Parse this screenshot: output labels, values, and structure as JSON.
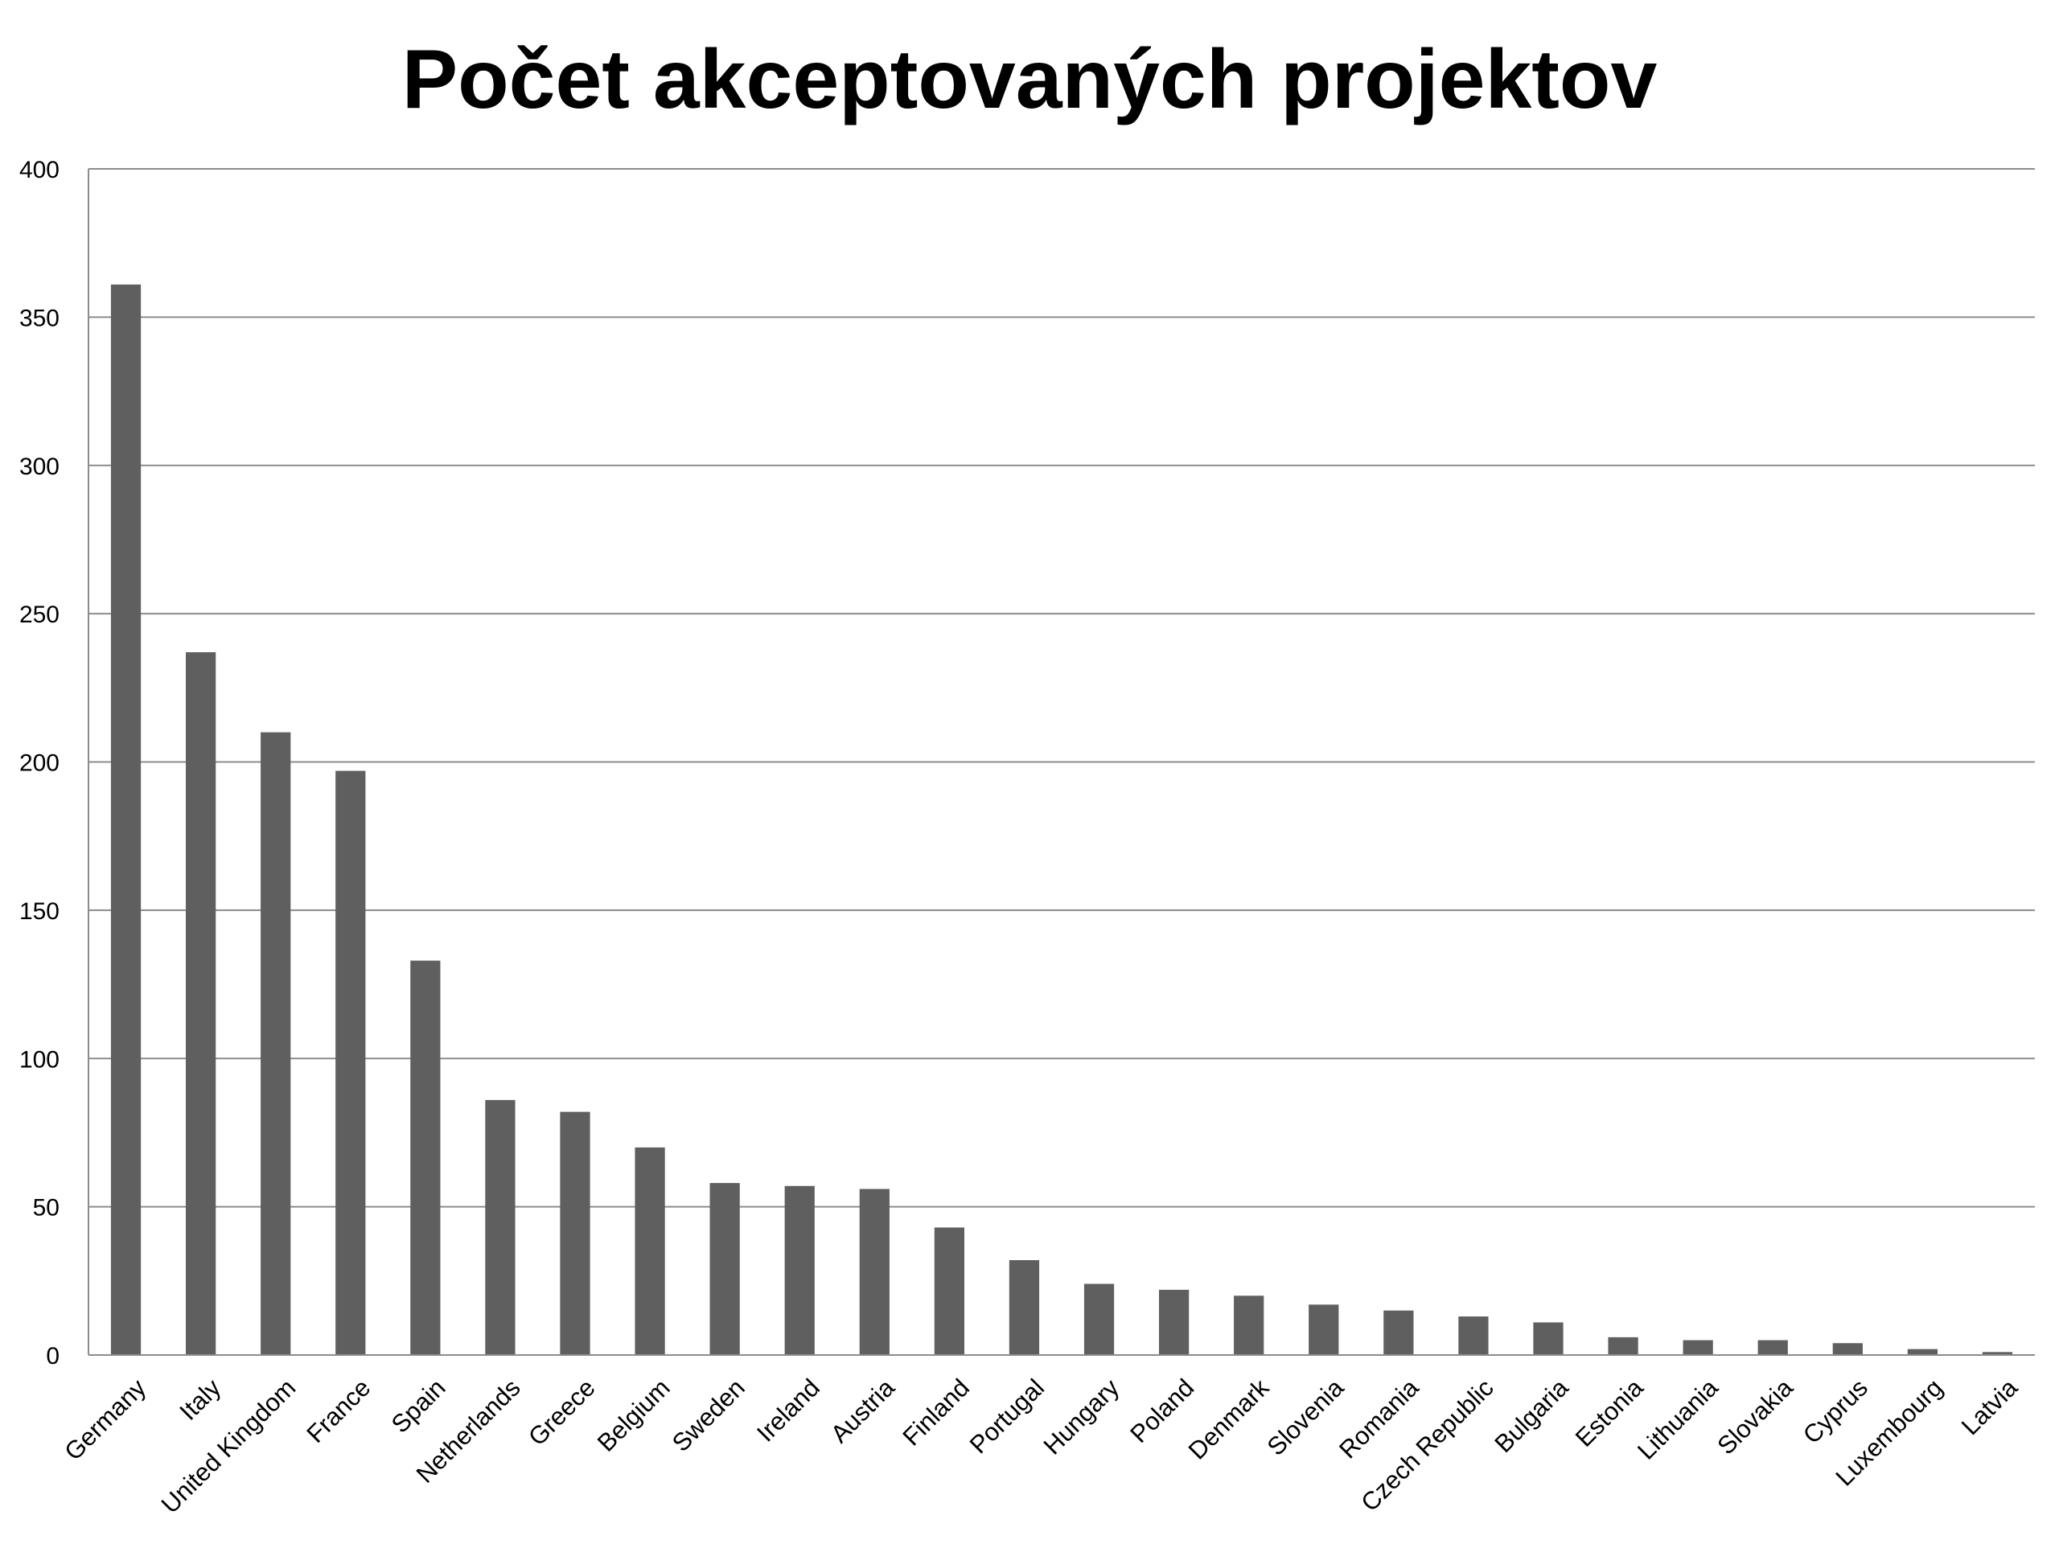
{
  "chart_data": {
    "type": "bar",
    "title": "Počet akceptovaných projektov",
    "xlabel": "",
    "ylabel": "",
    "ylim": [
      0,
      400
    ],
    "yticks": [
      0,
      50,
      100,
      150,
      200,
      250,
      300,
      350,
      400
    ],
    "grid": true,
    "legend": "none",
    "bar_color": "#5f5f5f",
    "grid_color": "#8c8c8c",
    "categories": [
      "Germany",
      "Italy",
      "United Kingdom",
      "France",
      "Spain",
      "Netherlands",
      "Greece",
      "Belgium",
      "Sweden",
      "Ireland",
      "Austria",
      "Finland",
      "Portugal",
      "Hungary",
      "Poland",
      "Denmark",
      "Slovenia",
      "Romania",
      "Czech Republic",
      "Bulgaria",
      "Estonia",
      "Lithuania",
      "Slovakia",
      "Cyprus",
      "Luxembourg",
      "Latvia"
    ],
    "values": [
      361,
      237,
      210,
      197,
      133,
      86,
      82,
      70,
      58,
      57,
      56,
      43,
      32,
      24,
      22,
      20,
      17,
      15,
      13,
      11,
      6,
      5,
      5,
      4,
      2,
      1
    ]
  }
}
